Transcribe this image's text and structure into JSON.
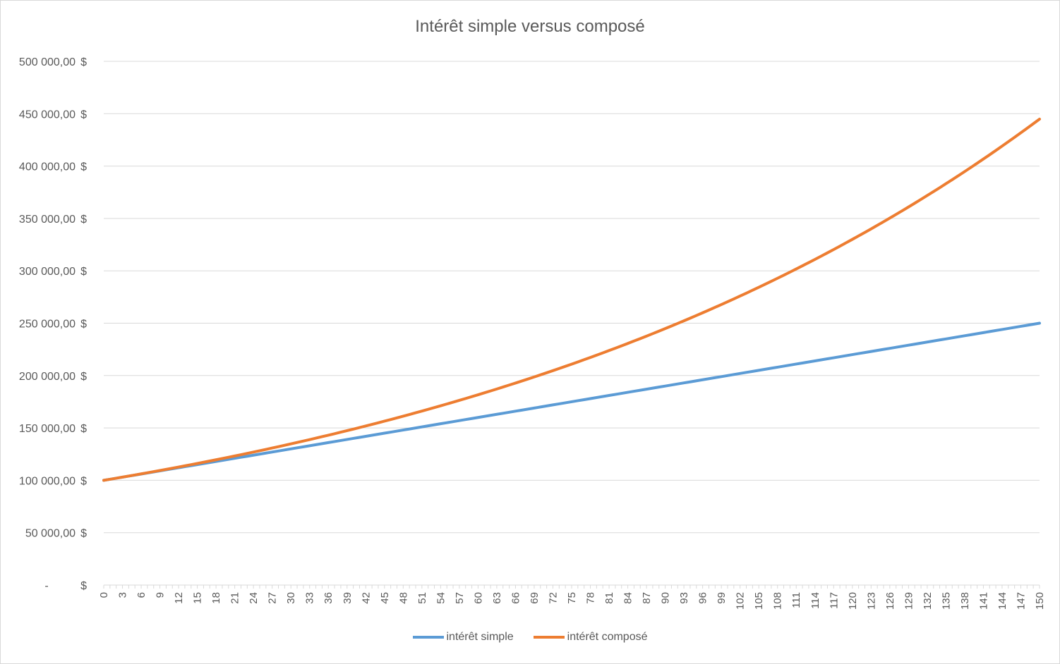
{
  "chart_data": {
    "type": "line",
    "title": "Intérêt simple versus composé",
    "xlabel": "",
    "ylabel": "",
    "x": [
      0,
      1,
      2,
      3,
      4,
      5,
      6,
      7,
      8,
      9,
      10,
      11,
      12,
      13,
      14,
      15,
      16,
      17,
      18,
      19,
      20,
      21,
      22,
      23,
      24,
      25,
      26,
      27,
      28,
      29,
      30,
      31,
      32,
      33,
      34,
      35,
      36,
      37,
      38,
      39,
      40,
      41,
      42,
      43,
      44,
      45,
      46,
      47,
      48,
      49,
      50,
      51,
      52,
      53,
      54,
      55,
      56,
      57,
      58,
      59,
      60,
      61,
      62,
      63,
      64,
      65,
      66,
      67,
      68,
      69,
      70,
      71,
      72,
      73,
      74,
      75,
      76,
      77,
      78,
      79,
      80,
      81,
      82,
      83,
      84,
      85,
      86,
      87,
      88,
      89,
      90,
      91,
      92,
      93,
      94,
      95,
      96,
      97,
      98,
      99,
      100,
      101,
      102,
      103,
      104,
      105,
      106,
      107,
      108,
      109,
      110,
      111,
      112,
      113,
      114,
      115,
      116,
      117,
      118,
      119,
      120,
      121,
      122,
      123,
      124,
      125,
      126,
      127,
      128,
      129,
      130,
      131,
      132,
      133,
      134,
      135,
      136,
      137,
      138,
      139,
      140,
      141,
      142,
      143,
      144,
      145,
      146,
      147,
      148,
      149,
      150
    ],
    "x_tick_labels": [
      "0",
      "3",
      "6",
      "9",
      "12",
      "15",
      "18",
      "21",
      "24",
      "27",
      "30",
      "33",
      "36",
      "39",
      "42",
      "45",
      "48",
      "51",
      "54",
      "57",
      "60",
      "63",
      "66",
      "69",
      "72",
      "75",
      "78",
      "81",
      "84",
      "87",
      "90",
      "93",
      "96",
      "99",
      "102",
      "105",
      "108",
      "111",
      "114",
      "117",
      "120",
      "123",
      "126",
      "129",
      "132",
      "135",
      "138",
      "141",
      "144",
      "147",
      "150"
    ],
    "y_tick_labels": [
      "-",
      "50 000,00",
      "100 000,00",
      "150 000,00",
      "200 000,00",
      "250 000,00",
      "300 000,00",
      "350 000,00",
      "400 000,00",
      "450 000,00",
      "500 000,00"
    ],
    "y_currency_symbol": "$",
    "ylim": [
      0,
      500000
    ],
    "grid": true,
    "legend_position": "bottom",
    "series": [
      {
        "name": "intérêt simple",
        "color": "#5b9bd5",
        "values": [
          100000,
          101000,
          102000,
          103000,
          104000,
          105000,
          106000,
          107000,
          108000,
          109000,
          110000,
          111000,
          112000,
          113000,
          114000,
          115000,
          116000,
          117000,
          118000,
          119000,
          120000,
          121000,
          122000,
          123000,
          124000,
          125000,
          126000,
          127000,
          128000,
          129000,
          130000,
          131000,
          132000,
          133000,
          134000,
          135000,
          136000,
          137000,
          138000,
          139000,
          140000,
          141000,
          142000,
          143000,
          144000,
          145000,
          146000,
          147000,
          148000,
          149000,
          150000,
          151000,
          152000,
          153000,
          154000,
          155000,
          156000,
          157000,
          158000,
          159000,
          160000,
          161000,
          162000,
          163000,
          164000,
          165000,
          166000,
          167000,
          168000,
          169000,
          170000,
          171000,
          172000,
          173000,
          174000,
          175000,
          176000,
          177000,
          178000,
          179000,
          180000,
          181000,
          182000,
          183000,
          184000,
          185000,
          186000,
          187000,
          188000,
          189000,
          190000,
          191000,
          192000,
          193000,
          194000,
          195000,
          196000,
          197000,
          198000,
          199000,
          200000,
          201000,
          202000,
          203000,
          204000,
          205000,
          206000,
          207000,
          208000,
          209000,
          210000,
          211000,
          212000,
          213000,
          214000,
          215000,
          216000,
          217000,
          218000,
          219000,
          220000,
          221000,
          222000,
          223000,
          224000,
          225000,
          226000,
          227000,
          228000,
          229000,
          230000,
          231000,
          232000,
          233000,
          234000,
          235000,
          236000,
          237000,
          238000,
          239000,
          240000,
          241000,
          242000,
          243000,
          244000,
          245000,
          246000,
          247000,
          248000,
          249000,
          250000
        ]
      },
      {
        "name": "intérêt composé",
        "color": "#ed7d31",
        "values": [
          100000,
          101000,
          102010,
          103030,
          104060,
          105101,
          106152,
          107214,
          108286,
          109369,
          110462,
          111567,
          112683,
          113809,
          114947,
          116097,
          117258,
          118430,
          119615,
          120811,
          122019,
          123239,
          124472,
          125716,
          126973,
          128243,
          129526,
          130821,
          132129,
          133450,
          134785,
          136133,
          137494,
          138869,
          140258,
          141660,
          143077,
          144508,
          145953,
          147412,
          148886,
          150375,
          151879,
          153398,
          154932,
          156481,
          158046,
          159626,
          161223,
          162835,
          164463,
          166108,
          167769,
          169447,
          171141,
          172852,
          174581,
          176327,
          178090,
          179871,
          181670,
          183486,
          185321,
          187174,
          189046,
          190937,
          192846,
          194774,
          196722,
          198689,
          200676,
          202683,
          204710,
          206757,
          208825,
          210913,
          213022,
          215152,
          217304,
          219477,
          221671,
          223888,
          226127,
          228388,
          230672,
          232979,
          235309,
          237662,
          240038,
          242439,
          244863,
          247312,
          249785,
          252283,
          254806,
          257354,
          259927,
          262527,
          265152,
          267803,
          270481,
          273186,
          275918,
          278677,
          281464,
          284279,
          287121,
          289993,
          292892,
          295821,
          298779,
          301767,
          304785,
          307833,
          310911,
          314020,
          317160,
          320332,
          323535,
          326771,
          330038,
          333339,
          336672,
          340039,
          343439,
          346874,
          350342,
          353846,
          357384,
          360958,
          364568,
          368213,
          371895,
          375614,
          379370,
          383164,
          386996,
          390866,
          394775,
          398723,
          402710,
          406737,
          410804,
          414912,
          419061,
          423252,
          427484,
          431759,
          436077,
          440438,
          444842
        ]
      }
    ]
  }
}
